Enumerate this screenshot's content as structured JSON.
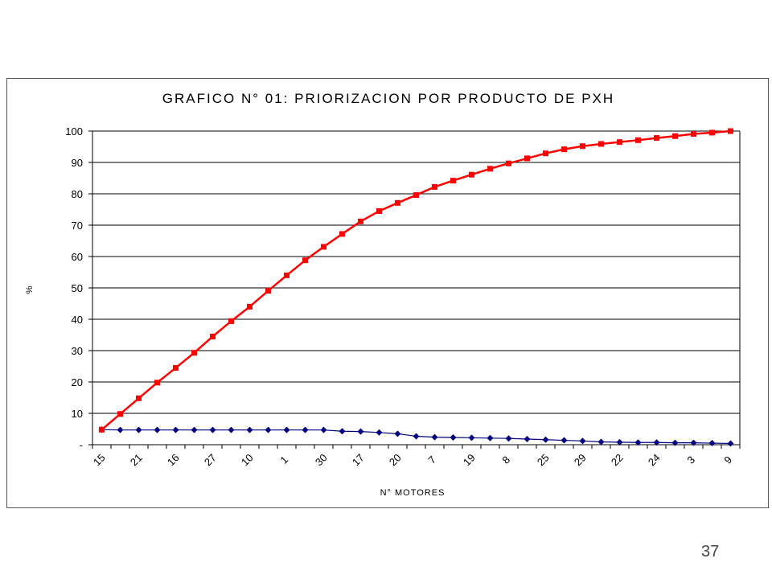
{
  "page": {
    "number": "37"
  },
  "chart_data": {
    "type": "line",
    "title": "GRAFICO N° 01: PRIORIZACION POR PRODUCTO DE PXH",
    "xlabel": "N° MOTORES",
    "ylabel": "%",
    "ylim": [
      0,
      100
    ],
    "yticks": [
      0,
      10,
      20,
      30,
      40,
      50,
      60,
      70,
      80,
      90,
      100
    ],
    "ytick_labels": [
      "-",
      "10",
      "20",
      "30",
      "40",
      "50",
      "60",
      "70",
      "80",
      "90",
      "100"
    ],
    "grid": true,
    "legend": "none",
    "categories": [
      "15",
      "",
      "21",
      "",
      "16",
      "",
      "27",
      "",
      "10",
      "",
      "1",
      "",
      "30",
      "",
      "17",
      "",
      "20",
      "",
      "7",
      "",
      "19",
      "",
      "8",
      "",
      "25",
      "",
      "29",
      "",
      "22",
      "",
      "24",
      "",
      "3",
      "",
      "9"
    ],
    "series": [
      {
        "color": "#000080",
        "marker": "diamond",
        "values": [
          4.8,
          4.7,
          4.7,
          4.7,
          4.7,
          4.7,
          4.7,
          4.7,
          4.7,
          4.7,
          4.7,
          4.7,
          4.7,
          4.3,
          4.2,
          3.9,
          3.5,
          2.7,
          2.4,
          2.3,
          2.2,
          2.1,
          2.0,
          1.8,
          1.6,
          1.4,
          1.2,
          0.9,
          0.8,
          0.7,
          0.7,
          0.6,
          0.6,
          0.5,
          0.4
        ]
      },
      {
        "color": "#ff0000",
        "marker": "square",
        "values": [
          4.8,
          9.8,
          14.8,
          19.8,
          24.5,
          29.3,
          34.5,
          39.4,
          44.0,
          49.1,
          54.0,
          58.8,
          63.1,
          67.2,
          71.2,
          74.5,
          77.1,
          79.6,
          82.2,
          84.2,
          86.1,
          88.0,
          89.7,
          91.3,
          92.9,
          94.2,
          95.2,
          95.9,
          96.5,
          97.1,
          97.8,
          98.4,
          99.1,
          99.5,
          100.0
        ]
      }
    ]
  }
}
